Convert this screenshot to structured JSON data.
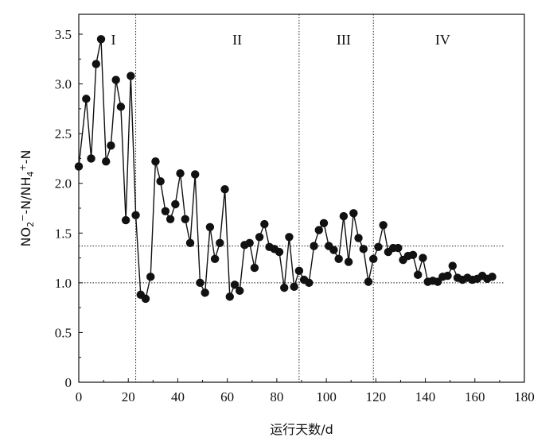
{
  "chart_data": {
    "type": "line",
    "title": "",
    "xlabel": "运行天数/d",
    "ylabel": "NO2−-N/NH4+-N",
    "xlim": [
      0,
      180
    ],
    "ylim": [
      0,
      3.7
    ],
    "xticks": [
      0,
      20,
      40,
      60,
      80,
      100,
      120,
      140,
      160,
      180
    ],
    "yticks": [
      0,
      0.5,
      1.0,
      1.5,
      2.0,
      2.5,
      3.0,
      3.5
    ],
    "ytick_labels": [
      "0",
      "0.5",
      "1.0",
      "1.5",
      "2.0",
      "2.5",
      "3.0",
      "3.5"
    ],
    "grid": false,
    "marker_color": "#111111",
    "line_color": "#111111",
    "phase_lines_x": [
      23,
      89,
      119
    ],
    "phases": [
      {
        "label": "I",
        "x": 14
      },
      {
        "label": "II",
        "x": 64
      },
      {
        "label": "III",
        "x": 107
      },
      {
        "label": "IV",
        "x": 147
      }
    ],
    "reference_lines": [
      {
        "y": 1.37,
        "x_range": [
          0,
          172
        ]
      },
      {
        "y": 1.0,
        "x_range": [
          0,
          172
        ]
      }
    ],
    "series": [
      {
        "x": [
          0,
          3,
          5,
          7,
          9,
          11,
          13,
          15,
          17,
          19,
          21,
          23,
          25,
          27,
          29,
          31,
          33,
          35,
          37,
          39,
          41,
          43,
          45,
          47,
          49,
          51,
          53,
          55,
          57,
          59,
          61,
          63,
          65,
          67,
          69,
          71,
          73,
          75,
          77,
          79,
          81,
          83,
          85,
          87,
          89,
          91,
          93,
          95,
          97,
          99,
          101,
          103,
          105,
          107,
          109,
          111,
          113,
          115,
          117,
          119,
          121,
          123,
          125,
          127,
          129,
          131,
          133,
          135,
          137,
          139,
          141,
          143,
          145,
          147,
          149,
          151,
          153,
          155,
          157,
          159,
          161,
          163,
          165,
          167
        ],
        "y": [
          2.17,
          2.85,
          2.25,
          3.2,
          3.45,
          2.22,
          2.38,
          3.04,
          2.77,
          1.63,
          3.08,
          1.68,
          0.88,
          0.84,
          1.06,
          2.22,
          2.02,
          1.72,
          1.64,
          1.79,
          2.1,
          1.64,
          1.4,
          2.09,
          1.0,
          0.9,
          1.56,
          1.24,
          1.4,
          1.94,
          0.86,
          0.98,
          0.92,
          1.38,
          1.4,
          1.15,
          1.46,
          1.59,
          1.36,
          1.34,
          1.31,
          0.95,
          1.46,
          0.96,
          1.12,
          1.03,
          1.0,
          1.37,
          1.53,
          1.6,
          1.37,
          1.33,
          1.24,
          1.67,
          1.21,
          1.7,
          1.45,
          1.34,
          1.01,
          1.24,
          1.36,
          1.58,
          1.31,
          1.35,
          1.35,
          1.23,
          1.27,
          1.28,
          1.08,
          1.25,
          1.01,
          1.02,
          1.01,
          1.06,
          1.07,
          1.17,
          1.05,
          1.03,
          1.05,
          1.03,
          1.04,
          1.07,
          1.04,
          1.06
        ]
      }
    ]
  }
}
